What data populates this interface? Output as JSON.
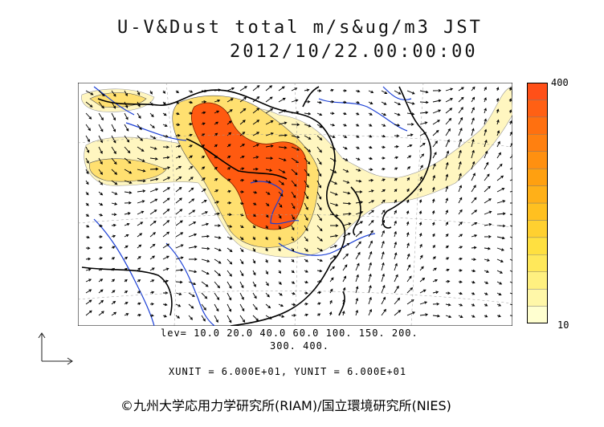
{
  "title": {
    "line1": "U-V&Dust total m/s&ug/m3 JST",
    "line2": "2012/10/22.00:00:00"
  },
  "colorbar": {
    "max_label": "400",
    "min_label": "10",
    "colors": [
      "#ffffd0",
      "#fff7a8",
      "#fff080",
      "#ffe85a",
      "#ffe040",
      "#ffd030",
      "#ffc020",
      "#ffb018",
      "#ffa010",
      "#ff9010",
      "#ff8010",
      "#ff7010",
      "#ff6014",
      "#ff5018"
    ]
  },
  "levels": {
    "line1": "lev= 10.0 20.0 40.0 60.0 100. 150. 200.",
    "line2": "300. 400."
  },
  "units_text": "XUNIT = 6.000E+01, YUNIT = 6.000E+01",
  "credit": "©九州大学応用力学研究所(RIAM)/国立環境研究所(NIES)",
  "map_colors": {
    "border": "#000000",
    "rivers": "#1a3fd6",
    "light_dust": "#fff6c0",
    "mid_dust": "#ffe070",
    "heavy_dust": "#ff5a10"
  }
}
